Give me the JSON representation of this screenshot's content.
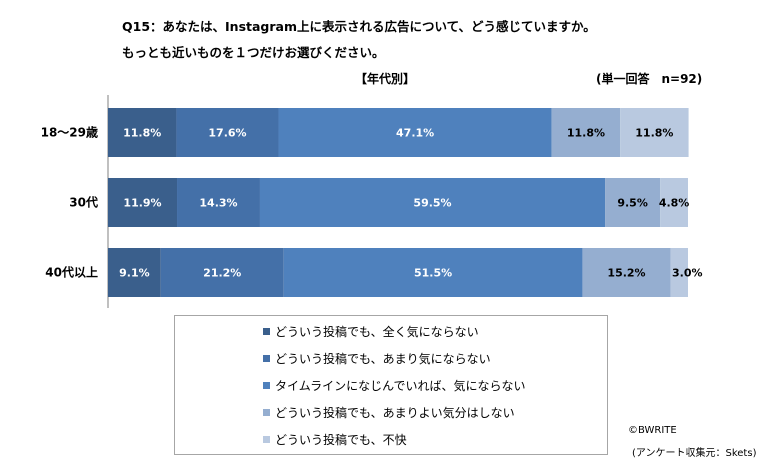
{
  "title_lines": [
    "Q15：あなたは、Instagram上に表示される広告について、どう感じていますか。",
    "もっとも近いものを１つだけお選びください。"
  ],
  "sub_label": "【年代別】",
  "sample_note": "(単一回答　n=92)",
  "credit": "©BWRITE",
  "source": "(アンケート収集元：Skets)",
  "chart_data": {
    "type": "bar",
    "orientation": "horizontal",
    "stacked": true,
    "percent_stacked": true,
    "xlim": [
      0,
      100
    ],
    "grid": false,
    "legend_position": "bottom",
    "categories": [
      "18〜29歳",
      "30代",
      "40代以上"
    ],
    "series": [
      {
        "name": "どういう投稿でも、全く気にならない",
        "color": "#3a5f8c",
        "values": [
          11.8,
          11.9,
          9.1
        ],
        "labels": [
          "11.8%",
          "11.9%",
          "9.1%"
        ],
        "label_color": "#ffffff"
      },
      {
        "name": "どういう投稿でも、あまり気にならない",
        "color": "#4470a8",
        "values": [
          17.6,
          14.3,
          21.2
        ],
        "labels": [
          "17.6%",
          "14.3%",
          "21.2%"
        ],
        "label_color": "#ffffff"
      },
      {
        "name": "タイムラインになじんでいれば、気にならない",
        "color": "#4f81bd",
        "values": [
          47.1,
          59.5,
          51.5
        ],
        "labels": [
          "47.1%",
          "59.5%",
          "51.5%"
        ],
        "label_color": "#ffffff"
      },
      {
        "name": "どういう投稿でも、あまりよい気分はしない",
        "color": "#95aed0",
        "values": [
          11.8,
          9.5,
          15.2
        ],
        "labels": [
          "11.8%",
          "9.5%",
          "15.2%"
        ],
        "label_color": "#000000"
      },
      {
        "name": "どういう投稿でも、不快",
        "color": "#b9c9e0",
        "values": [
          11.8,
          4.8,
          3.0
        ],
        "labels": [
          "11.8%",
          "4.8%",
          "3.0%"
        ],
        "label_color": "#000000"
      }
    ]
  }
}
